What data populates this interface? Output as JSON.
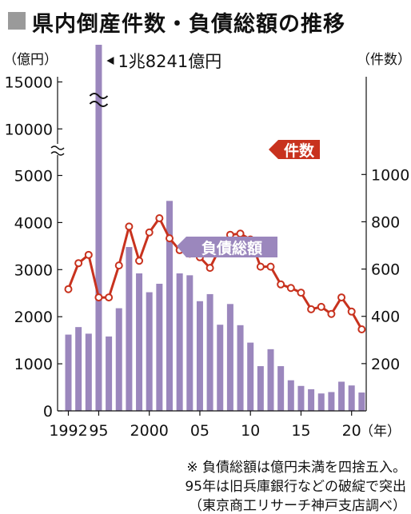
{
  "title": "県内倒産件数・負債総額の推移",
  "chart_data": {
    "type": "bar+line",
    "title": "県内倒産件数・負債総額の推移",
    "left_axis_unit": "（億円）",
    "right_axis_unit": "（件数）",
    "x_axis_unit": "（年）",
    "years": [
      1992,
      1993,
      1994,
      1995,
      1996,
      1997,
      1998,
      1999,
      2000,
      2001,
      2002,
      2003,
      2004,
      2005,
      2006,
      2007,
      2008,
      2009,
      2010,
      2011,
      2012,
      2013,
      2014,
      2015,
      2016,
      2017,
      2018,
      2019,
      2020,
      2021
    ],
    "x_tick_labels": [
      {
        "year": 1992,
        "label": "1992"
      },
      {
        "year": 1995,
        "label": "95"
      },
      {
        "year": 2000,
        "label": "2000"
      },
      {
        "year": 2005,
        "label": "05"
      },
      {
        "year": 2010,
        "label": "10"
      },
      {
        "year": 2015,
        "label": "15"
      },
      {
        "year": 2020,
        "label": "20"
      }
    ],
    "left_ticks": [
      {
        "value": 0,
        "label": "0"
      },
      {
        "value": 1000,
        "label": "1000"
      },
      {
        "value": 2000,
        "label": "2000"
      },
      {
        "value": 3000,
        "label": "3000"
      },
      {
        "value": 4000,
        "label": "4000"
      },
      {
        "value": 5000,
        "label": "5000"
      },
      {
        "value": 10000,
        "label": "10000"
      },
      {
        "value": 15000,
        "label": "15000"
      }
    ],
    "right_ticks": [
      {
        "value": 200,
        "label": "200"
      },
      {
        "value": 400,
        "label": "400"
      },
      {
        "value": 600,
        "label": "600"
      },
      {
        "value": 800,
        "label": "800"
      },
      {
        "value": 1000,
        "label": "1000"
      }
    ],
    "series": [
      {
        "name": "負債総額",
        "type": "bar",
        "axis": "left",
        "color": "#9b87bd",
        "values": [
          1620,
          1780,
          1640,
          18241,
          1580,
          2180,
          3480,
          2920,
          2520,
          2700,
          4460,
          2920,
          2880,
          2330,
          2480,
          1830,
          2270,
          1820,
          1450,
          950,
          1310,
          950,
          650,
          530,
          460,
          370,
          400,
          620,
          540,
          390
        ]
      },
      {
        "name": "件数",
        "type": "line",
        "axis": "right",
        "color": "#c8321e",
        "values": [
          515,
          625,
          660,
          480,
          480,
          615,
          780,
          635,
          755,
          815,
          730,
          680,
          665,
          650,
          605,
          690,
          745,
          750,
          725,
          610,
          610,
          535,
          520,
          500,
          430,
          440,
          410,
          480,
          420,
          345
        ]
      }
    ],
    "annotations": {
      "peak_label": "1兆8241億円",
      "line_label": "件数",
      "bar_label": "負債総額"
    },
    "notes": [
      "※ 負債総額は億円未満を四捨五入。",
      "95年は旧兵庫銀行などの破綻で突出",
      "（東京商工リサーチ神戸支店調べ）"
    ]
  }
}
